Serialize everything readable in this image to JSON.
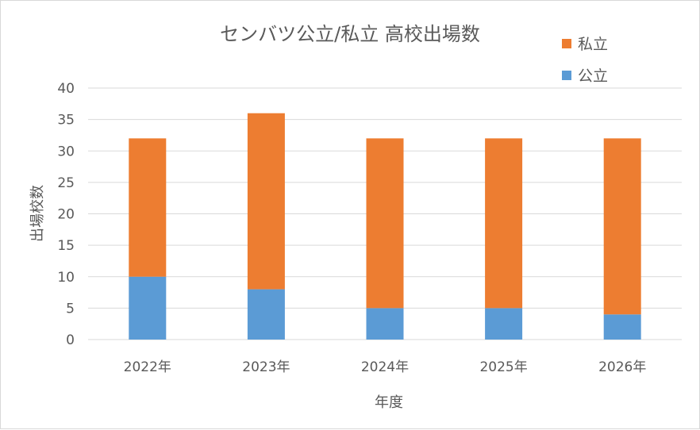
{
  "chart_data": {
    "type": "bar",
    "stacked": true,
    "title": "センバツ公立/私立 高校出場数",
    "xlabel": "年度",
    "ylabel": "出場校数",
    "categories": [
      "2022年",
      "2023年",
      "2024年",
      "2025年",
      "2026年"
    ],
    "series": [
      {
        "name": "公立",
        "color": "#5b9bd5",
        "values": [
          10,
          8,
          5,
          5,
          4
        ]
      },
      {
        "name": "私立",
        "color": "#ed7d31",
        "values": [
          22,
          28,
          27,
          27,
          28
        ]
      }
    ],
    "ylim": [
      0,
      40
    ],
    "yticks": [
      0,
      5,
      10,
      15,
      20,
      25,
      30,
      35,
      40
    ],
    "grid": true,
    "legend_position": "top-right"
  }
}
